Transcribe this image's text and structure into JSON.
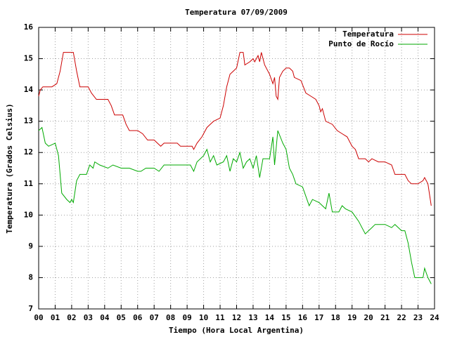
{
  "chart_data": {
    "type": "line",
    "title": "Temperatura 07/09/2009",
    "xlabel": "Tiempo (Hora Local Argentina)",
    "ylabel": "Temperatura (Grados Celsius)",
    "xlim": [
      0,
      24
    ],
    "ylim": [
      7,
      16
    ],
    "xticks": [
      {
        "value": 0,
        "label": "00"
      },
      {
        "value": 1,
        "label": "01"
      },
      {
        "value": 2,
        "label": "02"
      },
      {
        "value": 3,
        "label": "03"
      },
      {
        "value": 4,
        "label": "04"
      },
      {
        "value": 5,
        "label": "05"
      },
      {
        "value": 6,
        "label": "06"
      },
      {
        "value": 7,
        "label": "07"
      },
      {
        "value": 8,
        "label": "08"
      },
      {
        "value": 9,
        "label": "09"
      },
      10,
      11,
      12,
      13,
      14,
      15,
      16,
      17,
      18,
      19,
      20,
      21,
      22,
      23,
      24
    ],
    "yticks": [
      7,
      8,
      9,
      10,
      11,
      12,
      13,
      14,
      15,
      16
    ],
    "grid": true,
    "legend": "top-right",
    "series": [
      {
        "name": "Temperatura",
        "color": "#cc0000",
        "x": [
          0.0,
          0.1,
          0.25,
          0.5,
          0.8,
          1.1,
          1.3,
          1.5,
          1.8,
          2.1,
          2.3,
          2.5,
          2.8,
          3.0,
          3.2,
          3.5,
          3.8,
          4.2,
          4.4,
          4.6,
          4.9,
          5.1,
          5.3,
          5.5,
          6.0,
          6.3,
          6.6,
          7.0,
          7.2,
          7.4,
          7.6,
          8.0,
          8.4,
          8.6,
          9.0,
          9.3,
          9.4,
          9.6,
          9.9,
          10.2,
          10.4,
          10.6,
          11.0,
          11.2,
          11.4,
          11.6,
          11.8,
          12.0,
          12.2,
          12.4,
          12.5,
          12.8,
          13.0,
          13.1,
          13.3,
          13.4,
          13.5,
          13.7,
          14.0,
          14.2,
          14.3,
          14.4,
          14.5,
          14.6,
          14.8,
          15.0,
          15.2,
          15.4,
          15.5,
          15.9,
          16.2,
          16.5,
          16.8,
          17.0,
          17.1,
          17.2,
          17.4,
          17.8,
          18.1,
          18.4,
          18.7,
          19.0,
          19.2,
          19.4,
          19.8,
          20.0,
          20.2,
          20.6,
          21.0,
          21.4,
          21.6,
          22.0,
          22.2,
          22.4,
          22.6,
          23.0,
          23.3,
          23.4,
          23.6,
          23.8
        ],
        "values": [
          13.8,
          14.0,
          14.1,
          14.1,
          14.1,
          14.2,
          14.6,
          15.2,
          15.2,
          15.2,
          14.6,
          14.1,
          14.1,
          14.1,
          13.9,
          13.7,
          13.7,
          13.7,
          13.5,
          13.2,
          13.2,
          13.2,
          12.9,
          12.7,
          12.7,
          12.6,
          12.4,
          12.4,
          12.3,
          12.2,
          12.3,
          12.3,
          12.3,
          12.2,
          12.2,
          12.2,
          12.1,
          12.3,
          12.5,
          12.8,
          12.9,
          13.0,
          13.1,
          13.5,
          14.1,
          14.5,
          14.6,
          14.7,
          15.2,
          15.2,
          14.8,
          14.9,
          15.0,
          14.9,
          15.1,
          14.9,
          15.2,
          14.8,
          14.5,
          14.2,
          14.4,
          13.8,
          13.7,
          14.4,
          14.6,
          14.7,
          14.7,
          14.6,
          14.4,
          14.3,
          13.9,
          13.8,
          13.7,
          13.5,
          13.3,
          13.4,
          13.0,
          12.9,
          12.7,
          12.6,
          12.5,
          12.2,
          12.1,
          11.8,
          11.8,
          11.7,
          11.8,
          11.7,
          11.7,
          11.6,
          11.3,
          11.3,
          11.3,
          11.1,
          11.0,
          11.0,
          11.1,
          11.2,
          11.0,
          10.3
        ]
      },
      {
        "name": "Punto de Rocío",
        "color": "#00aa00",
        "x": [
          0.0,
          0.2,
          0.4,
          0.6,
          1.0,
          1.2,
          1.4,
          1.7,
          1.9,
          2.0,
          2.1,
          2.3,
          2.5,
          2.9,
          3.1,
          3.3,
          3.4,
          3.7,
          4.2,
          4.5,
          5.0,
          5.5,
          6.0,
          6.2,
          6.5,
          7.0,
          7.3,
          7.6,
          8.5,
          9.2,
          9.4,
          9.6,
          10.0,
          10.2,
          10.4,
          10.6,
          10.8,
          11.2,
          11.4,
          11.6,
          11.8,
          12.0,
          12.2,
          12.4,
          12.6,
          12.8,
          13.0,
          13.2,
          13.4,
          13.6,
          14.0,
          14.2,
          14.3,
          14.5,
          14.8,
          15.0,
          15.2,
          15.4,
          15.6,
          16.0,
          16.2,
          16.4,
          16.6,
          17.0,
          17.2,
          17.4,
          17.6,
          17.8,
          18.2,
          18.4,
          18.6,
          19.0,
          19.4,
          19.6,
          19.8,
          20.2,
          20.4,
          21.0,
          21.4,
          21.6,
          22.0,
          22.2,
          22.4,
          22.6,
          22.8,
          23.3,
          23.4,
          23.6,
          23.8
        ],
        "values": [
          12.7,
          12.8,
          12.3,
          12.2,
          12.3,
          11.9,
          10.7,
          10.5,
          10.4,
          10.5,
          10.4,
          11.1,
          11.3,
          11.3,
          11.6,
          11.5,
          11.7,
          11.6,
          11.5,
          11.6,
          11.5,
          11.5,
          11.4,
          11.4,
          11.5,
          11.5,
          11.4,
          11.6,
          11.6,
          11.6,
          11.4,
          11.7,
          11.9,
          12.1,
          11.7,
          11.9,
          11.6,
          11.7,
          11.9,
          11.4,
          11.8,
          11.7,
          12.0,
          11.5,
          11.7,
          11.8,
          11.5,
          11.9,
          11.2,
          11.8,
          11.8,
          12.5,
          11.6,
          12.7,
          12.3,
          12.1,
          11.5,
          11.3,
          11.0,
          10.9,
          10.6,
          10.3,
          10.5,
          10.4,
          10.3,
          10.2,
          10.7,
          10.1,
          10.1,
          10.3,
          10.2,
          10.1,
          9.8,
          9.6,
          9.4,
          9.6,
          9.7,
          9.7,
          9.6,
          9.7,
          9.5,
          9.5,
          9.1,
          8.5,
          8.0,
          8.0,
          8.3,
          8.0,
          7.8
        ]
      }
    ]
  }
}
